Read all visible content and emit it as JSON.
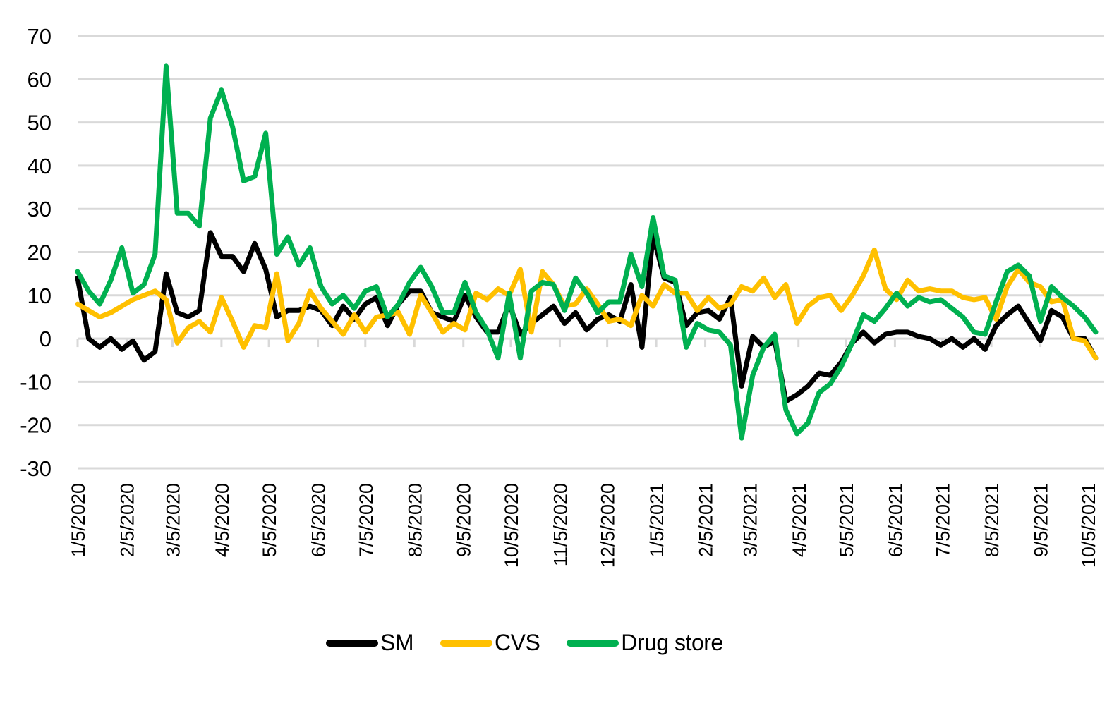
{
  "chart_data": {
    "type": "line",
    "title": "",
    "xlabel": "",
    "ylabel": "",
    "ylim": [
      -30,
      70
    ],
    "yticks": [
      70,
      60,
      50,
      40,
      30,
      20,
      10,
      0,
      -10,
      -20,
      -30
    ],
    "grid": true,
    "legend_position": "bottom",
    "x_start": "1/5/2020",
    "x_frequency": "weekly",
    "x_tick_labels": [
      "1/5/2020",
      "2/5/2020",
      "3/5/2020",
      "4/5/2020",
      "5/5/2020",
      "6/5/2020",
      "7/5/2020",
      "8/5/2020",
      "9/5/2020",
      "10/5/2020",
      "11/5/2020",
      "12/5/2020",
      "1/5/2021",
      "2/5/2021",
      "3/5/2021",
      "4/5/2021",
      "5/5/2021",
      "6/5/2021",
      "7/5/2021",
      "8/5/2021",
      "9/5/2021",
      "10/5/2021"
    ],
    "series": [
      {
        "name": "SM",
        "color": "#000000",
        "values": [
          14,
          0,
          -2,
          0,
          -2.5,
          -0.5,
          -5,
          -3,
          15,
          6,
          5,
          6.5,
          24.5,
          19,
          19,
          15.5,
          22,
          16,
          5,
          6.5,
          6.5,
          7.5,
          6.5,
          3,
          7.5,
          4.5,
          8,
          9.5,
          3,
          8,
          11,
          11,
          6,
          5,
          4,
          10,
          5,
          1.5,
          1.5,
          8,
          1,
          3.5,
          5.5,
          7.5,
          3.5,
          6,
          2,
          4.5,
          5.5,
          4,
          12.5,
          -2,
          24,
          14,
          13,
          3,
          6,
          6.5,
          4.5,
          9.5,
          -11,
          0.5,
          -2,
          -0.5,
          -14.5,
          -13,
          -11,
          -8,
          -8.5,
          -5.5,
          -1,
          1.5,
          -1,
          1,
          1.5,
          1.5,
          0.5,
          0,
          -1.5,
          0,
          -2,
          0,
          -2.5,
          3,
          5.5,
          7.5,
          3.5,
          -0.5,
          6.5,
          5,
          0,
          0,
          -4.5
        ]
      },
      {
        "name": "CVS",
        "color": "#FFC000",
        "values": [
          8,
          6.5,
          5,
          6,
          7.5,
          9,
          10,
          11,
          9,
          -1,
          2.5,
          4,
          1.5,
          9.5,
          4,
          -2,
          3,
          2.5,
          15,
          -0.5,
          3.5,
          11,
          7,
          4,
          1,
          5.5,
          1.5,
          5,
          5.5,
          6,
          1,
          10,
          6,
          1.5,
          3.5,
          2,
          10.5,
          9,
          11.5,
          10,
          16,
          1.5,
          15.5,
          12.5,
          7.5,
          8,
          11.5,
          8,
          4,
          4.5,
          3,
          10,
          7.5,
          12.5,
          10.5,
          10.5,
          6.5,
          9.5,
          7,
          8,
          12,
          11,
          14,
          9.5,
          12.5,
          3.5,
          7.5,
          9.5,
          10,
          6.5,
          10,
          14.5,
          20.5,
          11.5,
          9,
          13.5,
          11,
          11.5,
          11,
          11,
          9.5,
          9,
          9.5,
          4.5,
          12,
          16,
          13,
          12,
          8.5,
          9,
          0,
          -0.5,
          -4.5
        ]
      },
      {
        "name": "Drug store",
        "color": "#00B050",
        "values": [
          15.5,
          11,
          8,
          13.5,
          21,
          10.5,
          12.5,
          19.5,
          63,
          29,
          29,
          26,
          51,
          57.5,
          49,
          36.5,
          37.5,
          47.5,
          19.5,
          23.5,
          17,
          21,
          12,
          8,
          10,
          7,
          11,
          12,
          5,
          8,
          13,
          16.5,
          12,
          6,
          6,
          13,
          6,
          2,
          -4.5,
          10.5,
          -4.5,
          11,
          13,
          12.5,
          6.5,
          14,
          10.5,
          6,
          8.5,
          8.5,
          19.5,
          12,
          28,
          14.5,
          13.5,
          -2,
          3.5,
          2,
          1.5,
          -1.5,
          -23,
          -8.5,
          -2,
          1,
          -16.5,
          -22,
          -19.5,
          -12.5,
          -10.5,
          -6.5,
          -1,
          5.5,
          4,
          7,
          10.5,
          7.5,
          9.5,
          8.5,
          9,
          7,
          5,
          1.5,
          1,
          8.5,
          15.5,
          17,
          14.5,
          4,
          12,
          9.5,
          7.5,
          5,
          1.5
        ]
      }
    ]
  },
  "legend": {
    "items": [
      {
        "label": "SM",
        "color": "#000000"
      },
      {
        "label": "CVS",
        "color": "#FFC000"
      },
      {
        "label": "Drug store",
        "color": "#00B050"
      }
    ]
  }
}
